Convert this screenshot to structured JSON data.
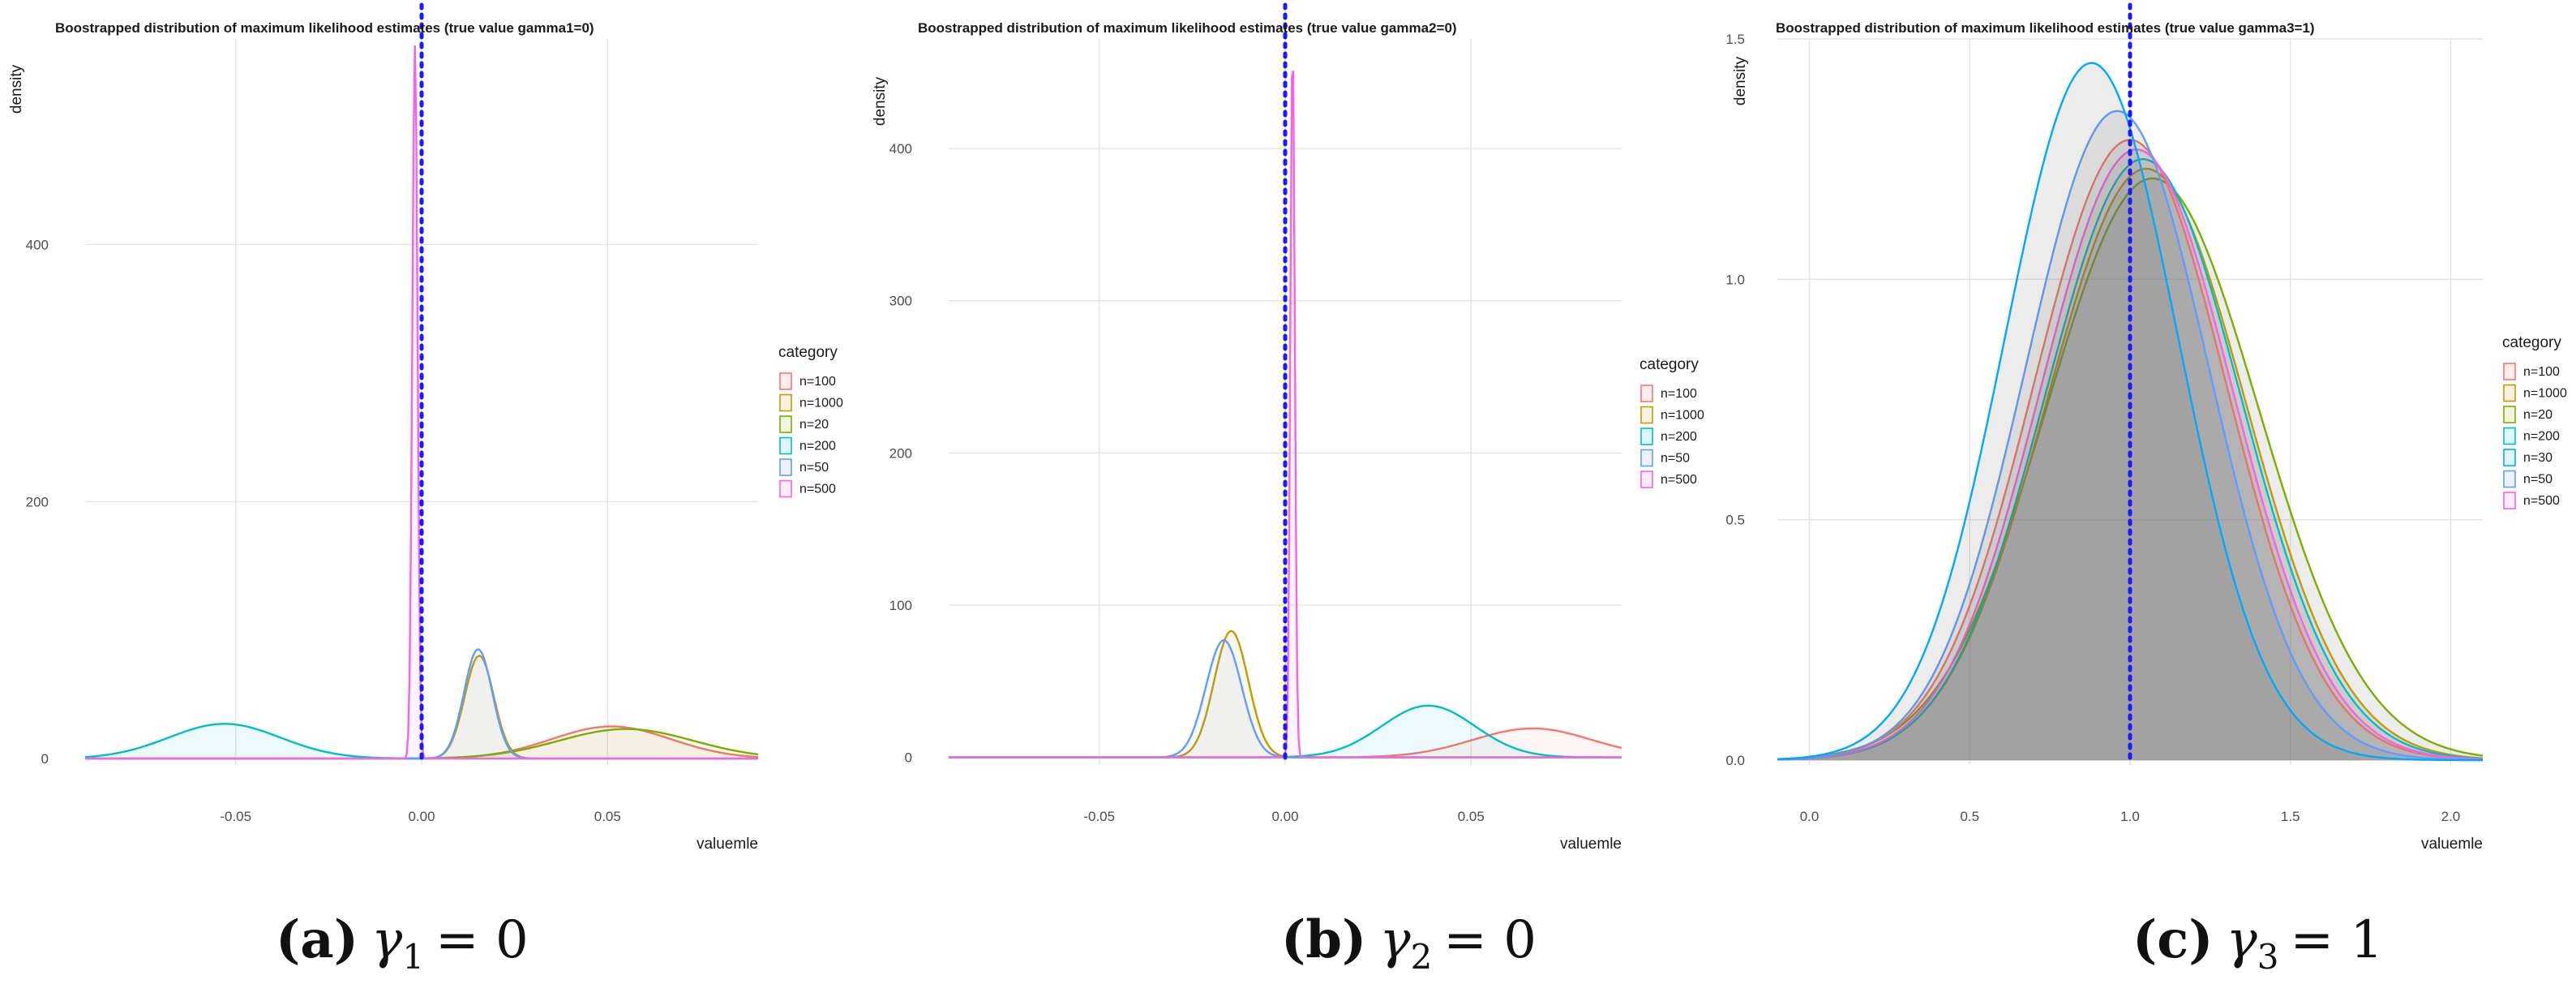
{
  "colors": {
    "n=20": "#7CAE00",
    "n=30": "#00A9FF",
    "n=50": "#619CFF",
    "n=100": "#F8766D",
    "n=200": "#00BFC4",
    "n=500": "#F564E3",
    "n=1000": "#C49A00",
    "reference": "#1a1aff"
  },
  "chart_data": [
    {
      "type": "area",
      "title": "Boostrapped distribution of maximum likelihood estimates  (true value gamma1=0)",
      "xlabel": "valuemle",
      "ylabel": "density",
      "xlim": [
        -0.0905,
        0.0905
      ],
      "ylim": [
        -5,
        560
      ],
      "x_ticks": [
        -0.05,
        0,
        0.05
      ],
      "x_tick_labels": [
        "-0.05",
        "0.00",
        "0.05"
      ],
      "y_ticks": [
        0,
        200,
        400
      ],
      "y_tick_labels": [
        "0",
        "200",
        "400"
      ],
      "reference_x": 0,
      "legend_title": "category",
      "legend": [
        "n=100",
        "n=1000",
        "n=20",
        "n=200",
        "n=50",
        "n=500"
      ],
      "caption": {
        "label": "(a)",
        "symbol": "γ",
        "subscript": "1",
        "relation": "= 0"
      },
      "series": [
        {
          "name": "n=100",
          "mean": 0.051,
          "sd": 0.016,
          "peak": 25
        },
        {
          "name": "n=1000",
          "mean": 0.0155,
          "sd": 0.0039,
          "peak": 80
        },
        {
          "name": "n=20",
          "mean": 0.055,
          "sd": 0.018,
          "peak": 23
        },
        {
          "name": "n=200",
          "mean": -0.053,
          "sd": 0.015,
          "peak": 27
        },
        {
          "name": "n=50",
          "mean": 0.0152,
          "sd": 0.0038,
          "peak": 85
        },
        {
          "name": "n=500",
          "mean": -0.0018,
          "sd": 0.0007,
          "peak": 555
        }
      ]
    },
    {
      "type": "area",
      "title": "Boostrapped distribution of maximum likelihood estimates  (true value gamma2=0)",
      "xlabel": "valuemle",
      "ylabel": "density",
      "xlim": [
        -0.0905,
        0.0905
      ],
      "ylim": [
        -5,
        472
      ],
      "x_ticks": [
        -0.05,
        0,
        0.05
      ],
      "x_tick_labels": [
        "-0.05",
        "0.00",
        "0.05"
      ],
      "y_ticks": [
        0,
        100,
        200,
        300,
        400
      ],
      "y_tick_labels": [
        "0",
        "100",
        "200",
        "300",
        "400"
      ],
      "reference_x": 0,
      "legend_title": "category",
      "legend": [
        "n=100",
        "n=1000",
        "n=200",
        "n=50",
        "n=500"
      ],
      "caption": {
        "label": "(b)",
        "symbol": "γ",
        "subscript": "2",
        "relation": "= 0"
      },
      "series": [
        {
          "name": "n=100",
          "mean": 0.0665,
          "sd": 0.016,
          "peak": 19
        },
        {
          "name": "n=1000",
          "mean": -0.0145,
          "sd": 0.0046,
          "peak": 83
        },
        {
          "name": "n=200",
          "mean": 0.0385,
          "sd": 0.0125,
          "peak": 34
        },
        {
          "name": "n=50",
          "mean": -0.0165,
          "sd": 0.0048,
          "peak": 77
        },
        {
          "name": "n=500",
          "mean": 0.002,
          "sd": 0.0006,
          "peak": 470
        }
      ]
    },
    {
      "type": "area",
      "title": "Boostrapped distribution of maximum likelihood estimates  (true value gamma3=1)",
      "xlabel": "valuemle",
      "ylabel": "density",
      "xlim": [
        -0.1,
        2.1
      ],
      "ylim": [
        -0.01,
        1.5
      ],
      "x_ticks": [
        0,
        0.5,
        1,
        1.5,
        2
      ],
      "x_tick_labels": [
        "0.0",
        "0.5",
        "1.0",
        "1.5",
        "2.0"
      ],
      "y_ticks": [
        0,
        0.5,
        1,
        1.5
      ],
      "y_tick_labels": [
        "0.0",
        "0.5",
        "1.0",
        "1.5"
      ],
      "reference_x": 1,
      "legend_title": "category",
      "legend": [
        "n=100",
        "n=1000",
        "n=20",
        "n=200",
        "n=30",
        "n=50",
        "n=500"
      ],
      "caption": {
        "label": "(c)",
        "symbol": "γ",
        "subscript": "3",
        "relation": "= 1"
      },
      "series": [
        {
          "name": "n=20",
          "mean": 1.07,
          "sd": 0.33,
          "peak": 1.21
        },
        {
          "name": "n=1000",
          "mean": 1.05,
          "sd": 0.31,
          "peak": 1.23
        },
        {
          "name": "n=200",
          "mean": 1.04,
          "sd": 0.305,
          "peak": 1.25
        },
        {
          "name": "n=100",
          "mean": 1.0,
          "sd": 0.3,
          "peak": 1.29
        },
        {
          "name": "n=500",
          "mean": 1.02,
          "sd": 0.3,
          "peak": 1.27
        },
        {
          "name": "n=50",
          "mean": 0.96,
          "sd": 0.285,
          "peak": 1.35
        },
        {
          "name": "n=30",
          "mean": 0.88,
          "sd": 0.27,
          "peak": 1.45
        }
      ]
    }
  ]
}
